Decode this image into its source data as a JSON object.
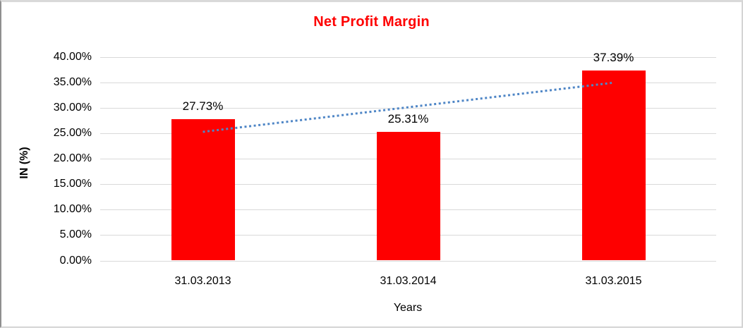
{
  "chart_data": {
    "type": "bar",
    "title": "Net Profit Margin",
    "categories": [
      "31.03.2013",
      "31.03.2014",
      "31.03.2015"
    ],
    "series": [
      {
        "name": "Net Profit Margin",
        "values": [
          27.73,
          25.31,
          37.39
        ]
      }
    ],
    "data_labels": [
      "27.73%",
      "25.31%",
      "37.39%"
    ],
    "xlabel": "Years",
    "ylabel": "IN (%)",
    "ylim": [
      0,
      40
    ],
    "ytick_step": 5,
    "ytick_labels": [
      "0.00%",
      "5.00%",
      "10.00%",
      "15.00%",
      "20.00%",
      "25.00%",
      "30.00%",
      "35.00%",
      "40.00%"
    ],
    "grid": true,
    "legend": "none",
    "trendline": {
      "type": "linear",
      "style": "dotted",
      "start_value": 25.31,
      "end_value": 34.97
    },
    "colors": {
      "bar": "#fe0000",
      "title": "#fe0000",
      "trendline": "#4f86c6",
      "gridline": "#d9d9d9",
      "axis_text": "#000000"
    }
  }
}
